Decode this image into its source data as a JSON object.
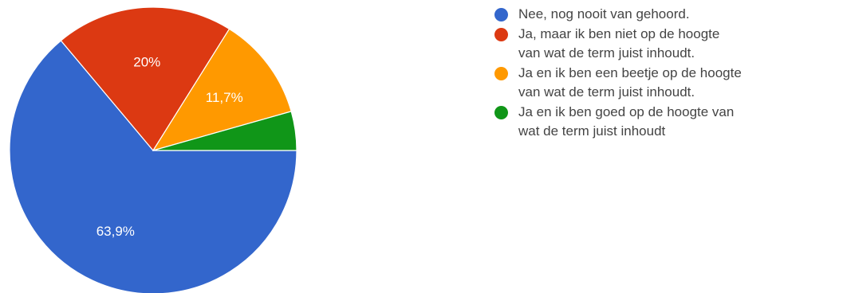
{
  "chart_data": {
    "type": "pie",
    "slices": [
      {
        "label": "Nee, nog nooit van gehoord.",
        "value": 63.9,
        "display": "63,9%",
        "color": "#3366cc"
      },
      {
        "label": "Ja, maar ik ben niet op de hoogte van wat de term juist inhoudt.",
        "value": 20.0,
        "display": "20%",
        "color": "#dc3912"
      },
      {
        "label": "Ja en ik ben een beetje op de hoogte van wat de term juist inhoudt.",
        "value": 11.7,
        "display": "11,7%",
        "color": "#ff9900"
      },
      {
        "label": "Ja en ik ben goed op de hoogte van wat de term juist inhoudt",
        "value": 4.4,
        "display": "",
        "color": "#109618"
      }
    ],
    "legend_position": "right"
  },
  "legend": {
    "items": [
      {
        "line1": "Nee, nog nooit van gehoord.",
        "line2": ""
      },
      {
        "line1": "Ja, maar ik ben niet op de hoogte",
        "line2": "van wat de term juist inhoudt."
      },
      {
        "line1": "Ja en ik ben een beetje op de hoogte",
        "line2": "van wat de term juist inhoudt."
      },
      {
        "line1": "Ja en ik ben goed op de hoogte van",
        "line2": "wat de term juist inhoudt"
      }
    ]
  }
}
